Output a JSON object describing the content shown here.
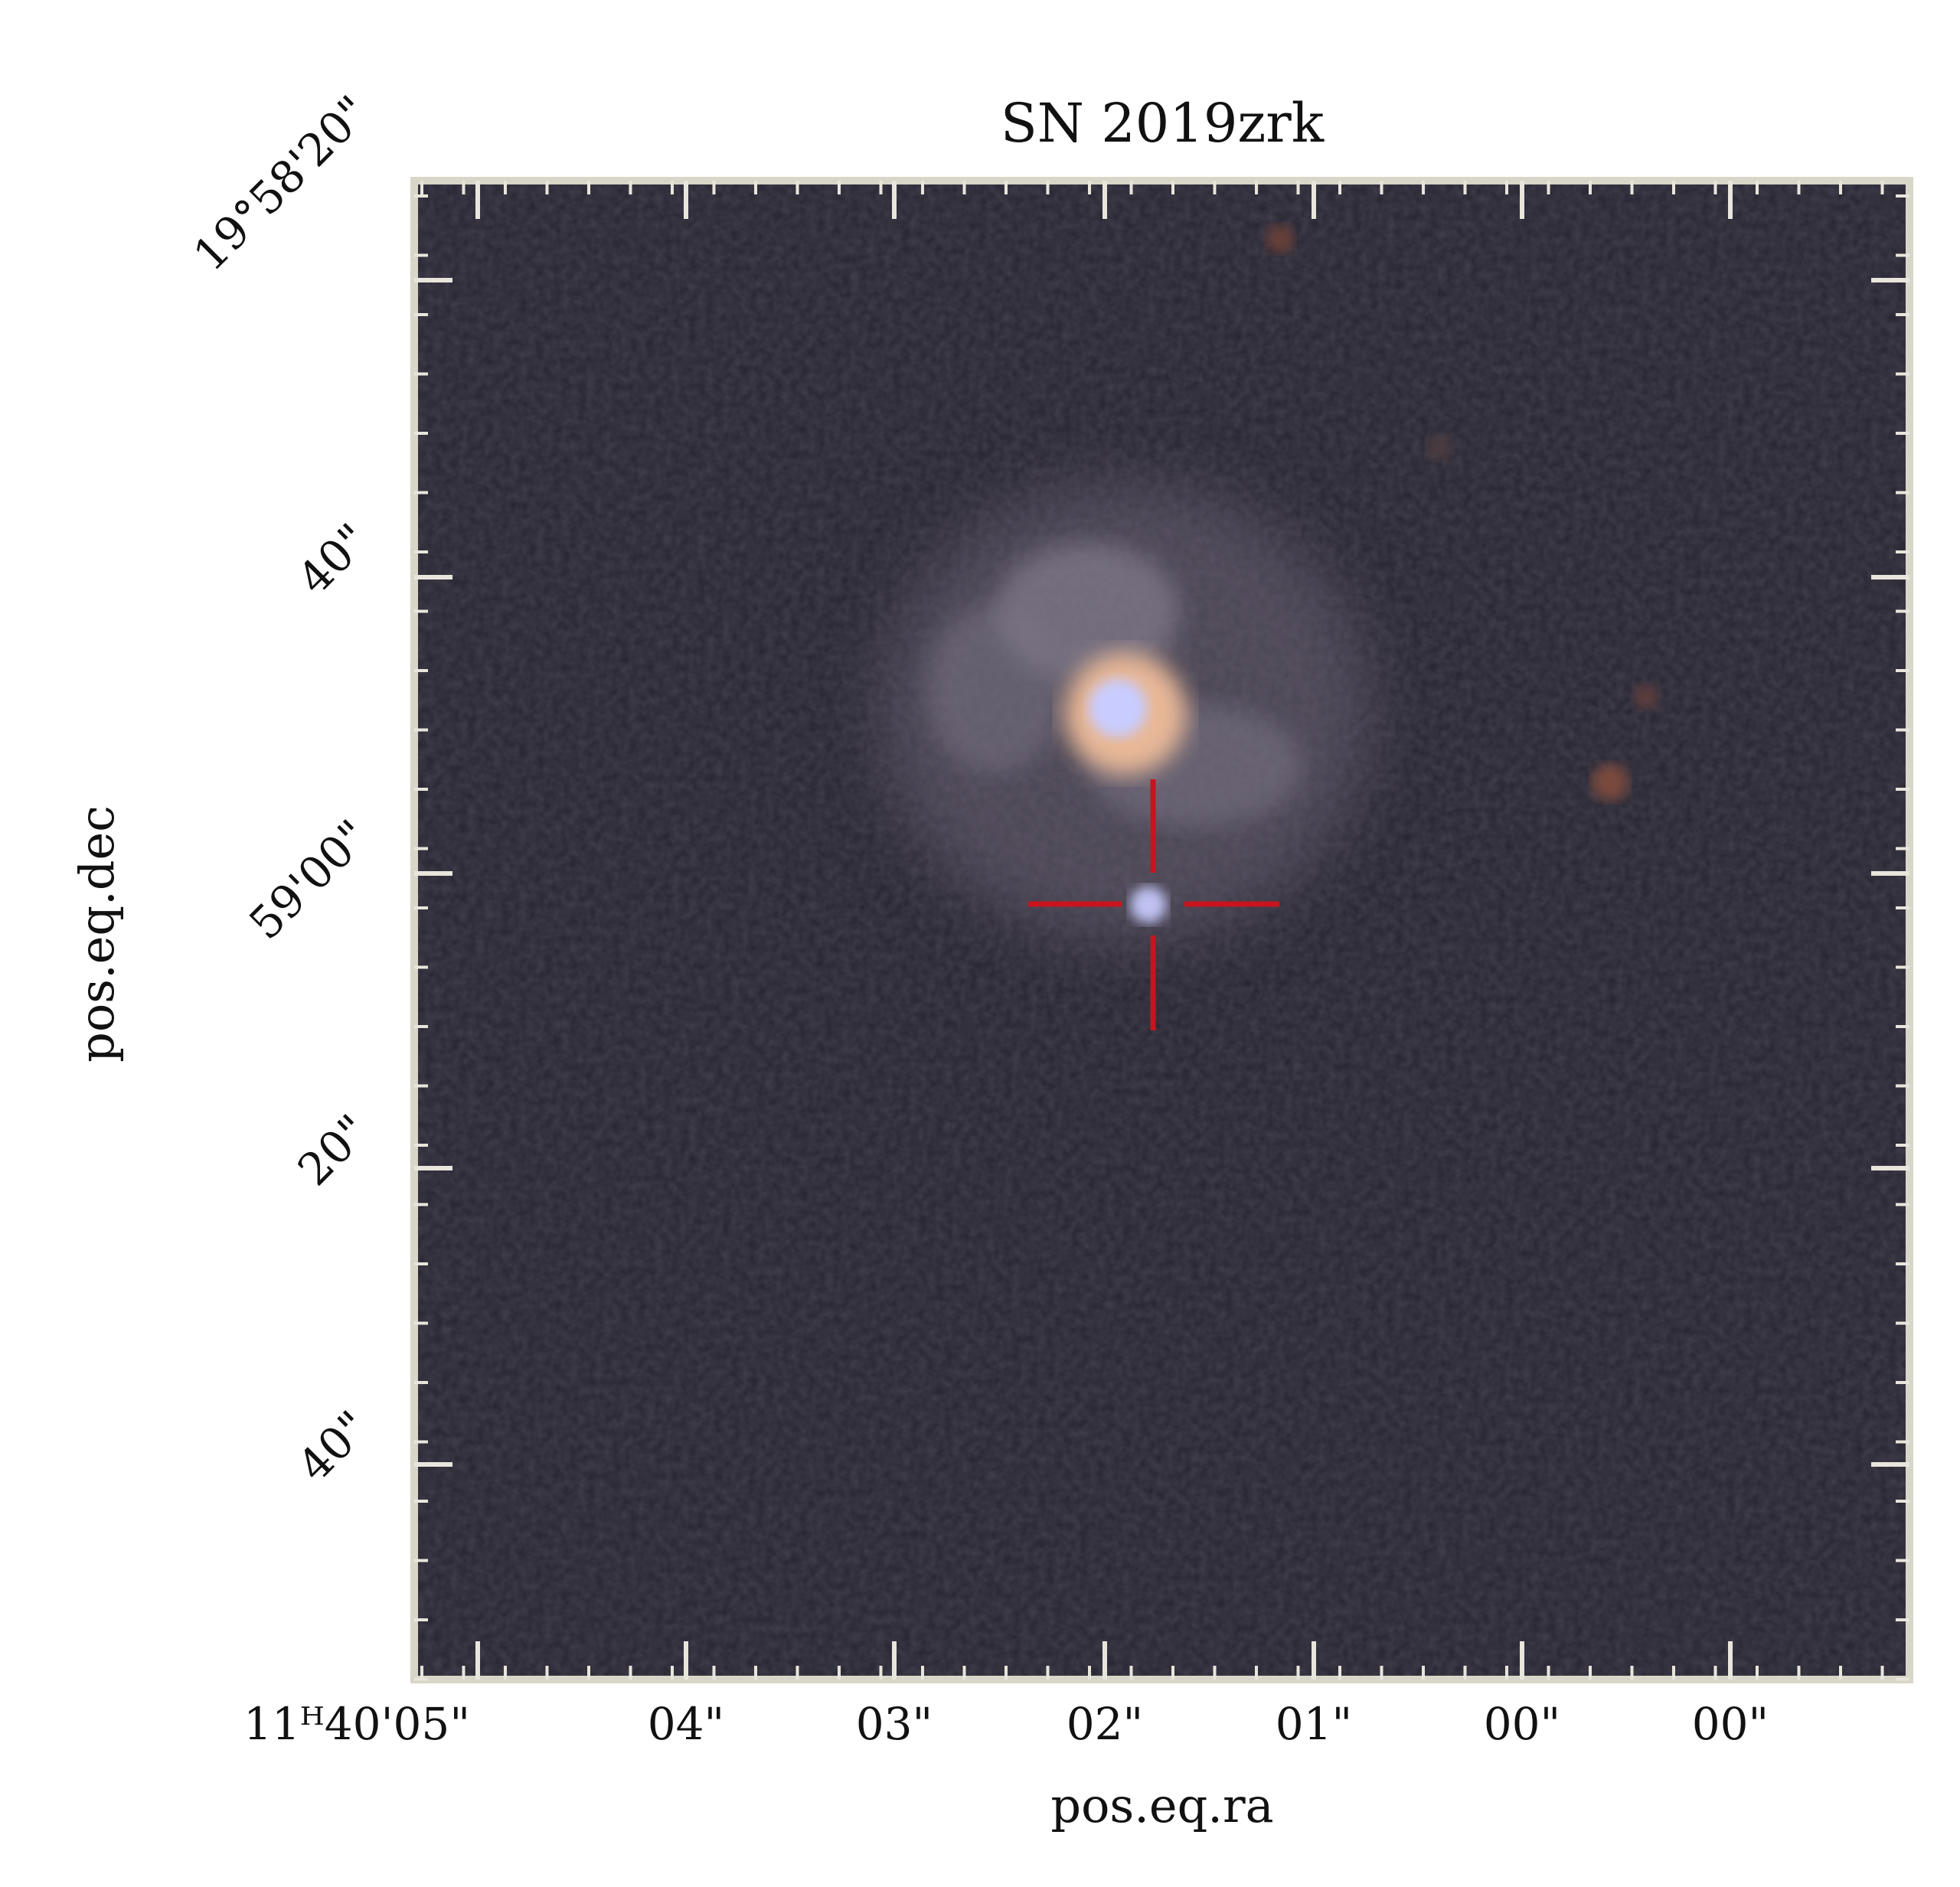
{
  "chart_data": {
    "type": "image",
    "title": "SN 2019zrk",
    "xlabel": "pos.eq.ra",
    "ylabel": "pos.eq.dec",
    "x_tick_labels": [
      "11ᴴ40'05\"",
      "04\"",
      "03\"",
      "02\"",
      "01\"",
      "00\"",
      "00\""
    ],
    "y_tick_labels": [
      "19°58'20\"",
      "40\"",
      "59'00\"",
      "20\"",
      "40\""
    ],
    "frame_color": "#d8d6c8",
    "marker_color": "#c8141e"
  }
}
